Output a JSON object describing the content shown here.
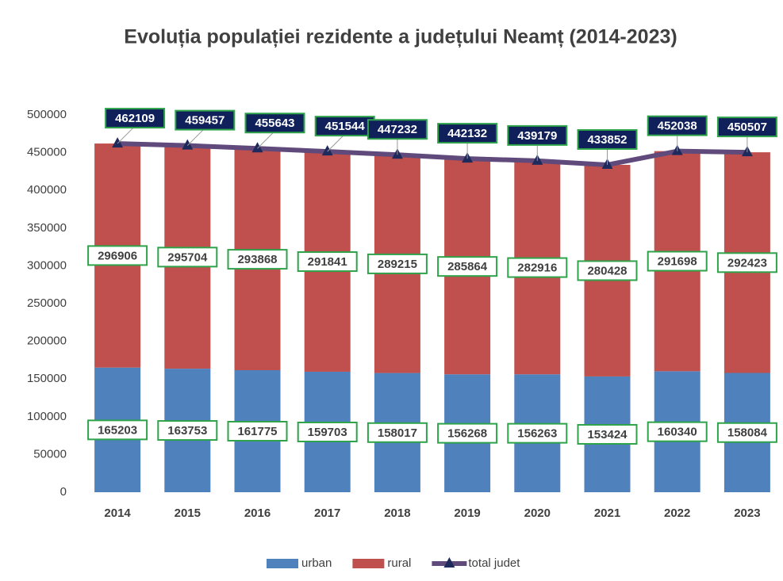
{
  "chart_data": {
    "type": "stacked-bar-line",
    "title": "Evoluția populației rezidente a județului Neamț (2014-2023)",
    "categories": [
      "2014",
      "2015",
      "2016",
      "2017",
      "2018",
      "2019",
      "2020",
      "2021",
      "2022",
      "2023"
    ],
    "series": [
      {
        "name": "urban",
        "color": "#4f81bd",
        "kind": "bar",
        "values": [
          165203,
          163753,
          161775,
          159703,
          158017,
          156268,
          156263,
          153424,
          160340,
          158084
        ]
      },
      {
        "name": "rural",
        "color": "#c0504d",
        "kind": "bar",
        "values": [
          296906,
          295704,
          293868,
          291841,
          289215,
          285864,
          282916,
          280428,
          291698,
          292423
        ]
      },
      {
        "name": "total judet",
        "color": "#604a7b",
        "kind": "line",
        "values": [
          462109,
          459457,
          455643,
          451544,
          447232,
          442132,
          439179,
          433852,
          452038,
          450507
        ]
      }
    ],
    "ylim": [
      0,
      500000
    ],
    "yticks": [
      0,
      50000,
      100000,
      150000,
      200000,
      250000,
      300000,
      350000,
      400000,
      450000,
      500000
    ],
    "legend": "bottom"
  }
}
